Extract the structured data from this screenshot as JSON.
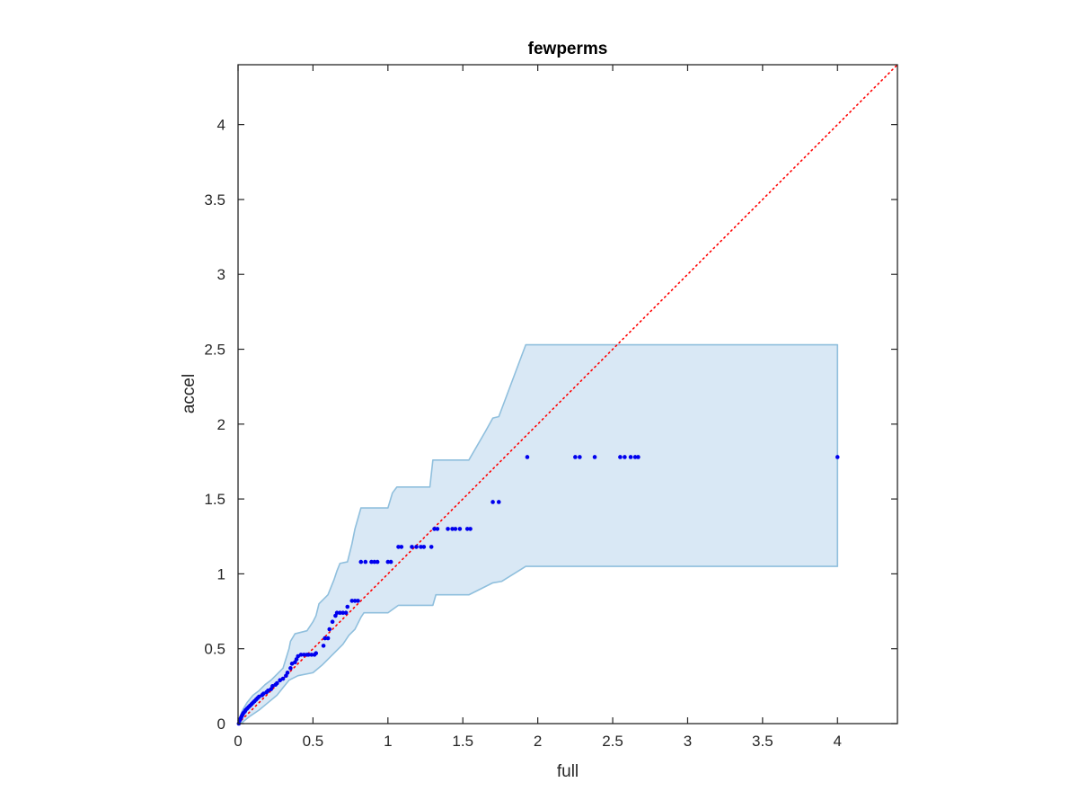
{
  "chart_data": {
    "type": "scatter",
    "title": "fewperms",
    "xlabel": "full",
    "ylabel": "accel",
    "xlim": [
      0,
      4.4
    ],
    "ylim": [
      0,
      4.4
    ],
    "xticks": [
      0,
      0.5,
      1,
      1.5,
      2,
      2.5,
      3,
      3.5,
      4
    ],
    "yticks": [
      0,
      0.5,
      1,
      1.5,
      2,
      2.5,
      3,
      3.5,
      4
    ],
    "xtick_labels": [
      "0",
      "0.5",
      "1",
      "1.5",
      "2",
      "2.5",
      "3",
      "3.5",
      "4"
    ],
    "ytick_labels": [
      "0",
      "0.5",
      "1",
      "1.5",
      "2",
      "2.5",
      "3",
      "3.5",
      "4"
    ],
    "grid": false,
    "box": true,
    "colors": {
      "points": "#0000ee",
      "band_fill": "#d9e8f5",
      "band_edge": "#8fbfdd",
      "reference_line": "#ff0000",
      "axes": "#262626"
    },
    "reference_line": {
      "style": "dotted",
      "from": [
        0,
        0
      ],
      "to": [
        4.4,
        4.4
      ]
    },
    "band_upper": [
      [
        0,
        0
      ],
      [
        0.01,
        0.04
      ],
      [
        0.03,
        0.09
      ],
      [
        0.06,
        0.14
      ],
      [
        0.1,
        0.19
      ],
      [
        0.14,
        0.22
      ],
      [
        0.18,
        0.26
      ],
      [
        0.22,
        0.29
      ],
      [
        0.26,
        0.33
      ],
      [
        0.3,
        0.37
      ],
      [
        0.34,
        0.5
      ],
      [
        0.35,
        0.55
      ],
      [
        0.38,
        0.6
      ],
      [
        0.46,
        0.62
      ],
      [
        0.5,
        0.68
      ],
      [
        0.52,
        0.72
      ],
      [
        0.54,
        0.8
      ],
      [
        0.6,
        0.86
      ],
      [
        0.64,
        0.96
      ],
      [
        0.66,
        1.02
      ],
      [
        0.68,
        1.07
      ],
      [
        0.73,
        1.08
      ],
      [
        0.76,
        1.2
      ],
      [
        0.78,
        1.3
      ],
      [
        0.82,
        1.44
      ],
      [
        1.0,
        1.44
      ],
      [
        1.03,
        1.54
      ],
      [
        1.06,
        1.58
      ],
      [
        1.28,
        1.58
      ],
      [
        1.3,
        1.76
      ],
      [
        1.54,
        1.76
      ],
      [
        1.65,
        1.95
      ],
      [
        1.7,
        2.04
      ],
      [
        1.74,
        2.05
      ],
      [
        1.92,
        2.53
      ],
      [
        4.0,
        2.53
      ]
    ],
    "band_lower": [
      [
        0,
        0
      ],
      [
        0.03,
        0.01
      ],
      [
        0.08,
        0.05
      ],
      [
        0.14,
        0.09
      ],
      [
        0.2,
        0.14
      ],
      [
        0.26,
        0.19
      ],
      [
        0.3,
        0.24
      ],
      [
        0.34,
        0.29
      ],
      [
        0.4,
        0.32
      ],
      [
        0.5,
        0.34
      ],
      [
        0.56,
        0.39
      ],
      [
        0.62,
        0.45
      ],
      [
        0.7,
        0.53
      ],
      [
        0.74,
        0.59
      ],
      [
        0.78,
        0.63
      ],
      [
        0.82,
        0.71
      ],
      [
        0.84,
        0.74
      ],
      [
        1.0,
        0.74
      ],
      [
        1.07,
        0.79
      ],
      [
        1.3,
        0.79
      ],
      [
        1.32,
        0.86
      ],
      [
        1.54,
        0.86
      ],
      [
        1.6,
        0.89
      ],
      [
        1.7,
        0.94
      ],
      [
        1.76,
        0.95
      ],
      [
        1.92,
        1.05
      ],
      [
        4.0,
        1.05
      ]
    ],
    "points": [
      [
        0.005,
        0.0
      ],
      [
        0.01,
        0.02
      ],
      [
        0.015,
        0.03
      ],
      [
        0.02,
        0.04
      ],
      [
        0.025,
        0.05
      ],
      [
        0.03,
        0.06
      ],
      [
        0.035,
        0.07
      ],
      [
        0.045,
        0.08
      ],
      [
        0.05,
        0.09
      ],
      [
        0.06,
        0.1
      ],
      [
        0.07,
        0.11
      ],
      [
        0.08,
        0.12
      ],
      [
        0.09,
        0.13
      ],
      [
        0.1,
        0.14
      ],
      [
        0.11,
        0.15
      ],
      [
        0.12,
        0.16
      ],
      [
        0.13,
        0.17
      ],
      [
        0.14,
        0.18
      ],
      [
        0.16,
        0.19
      ],
      [
        0.17,
        0.2
      ],
      [
        0.19,
        0.21
      ],
      [
        0.2,
        0.22
      ],
      [
        0.22,
        0.23
      ],
      [
        0.23,
        0.25
      ],
      [
        0.25,
        0.26
      ],
      [
        0.26,
        0.27
      ],
      [
        0.28,
        0.29
      ],
      [
        0.3,
        0.3
      ],
      [
        0.32,
        0.32
      ],
      [
        0.33,
        0.34
      ],
      [
        0.35,
        0.37
      ],
      [
        0.36,
        0.4
      ],
      [
        0.38,
        0.41
      ],
      [
        0.39,
        0.43
      ],
      [
        0.4,
        0.45
      ],
      [
        0.42,
        0.46
      ],
      [
        0.44,
        0.46
      ],
      [
        0.46,
        0.46
      ],
      [
        0.47,
        0.46
      ],
      [
        0.49,
        0.46
      ],
      [
        0.51,
        0.46
      ],
      [
        0.52,
        0.47
      ],
      [
        0.57,
        0.52
      ],
      [
        0.58,
        0.57
      ],
      [
        0.6,
        0.57
      ],
      [
        0.61,
        0.63
      ],
      [
        0.63,
        0.68
      ],
      [
        0.65,
        0.72
      ],
      [
        0.66,
        0.74
      ],
      [
        0.68,
        0.74
      ],
      [
        0.7,
        0.74
      ],
      [
        0.72,
        0.74
      ],
      [
        0.73,
        0.78
      ],
      [
        0.76,
        0.82
      ],
      [
        0.78,
        0.82
      ],
      [
        0.8,
        0.82
      ],
      [
        0.82,
        1.08
      ],
      [
        0.85,
        1.08
      ],
      [
        0.89,
        1.08
      ],
      [
        0.91,
        1.08
      ],
      [
        0.93,
        1.08
      ],
      [
        1.0,
        1.08
      ],
      [
        1.02,
        1.08
      ],
      [
        1.07,
        1.18
      ],
      [
        1.09,
        1.18
      ],
      [
        1.16,
        1.18
      ],
      [
        1.19,
        1.18
      ],
      [
        1.22,
        1.18
      ],
      [
        1.24,
        1.18
      ],
      [
        1.29,
        1.18
      ],
      [
        1.31,
        1.3
      ],
      [
        1.33,
        1.3
      ],
      [
        1.4,
        1.3
      ],
      [
        1.43,
        1.3
      ],
      [
        1.45,
        1.3
      ],
      [
        1.48,
        1.3
      ],
      [
        1.53,
        1.3
      ],
      [
        1.55,
        1.3
      ],
      [
        1.7,
        1.48
      ],
      [
        1.74,
        1.48
      ],
      [
        1.93,
        1.78
      ],
      [
        2.25,
        1.78
      ],
      [
        2.28,
        1.78
      ],
      [
        2.38,
        1.78
      ],
      [
        2.55,
        1.78
      ],
      [
        2.58,
        1.78
      ],
      [
        2.62,
        1.78
      ],
      [
        2.65,
        1.78
      ],
      [
        2.67,
        1.78
      ],
      [
        4.0,
        1.78
      ]
    ]
  }
}
